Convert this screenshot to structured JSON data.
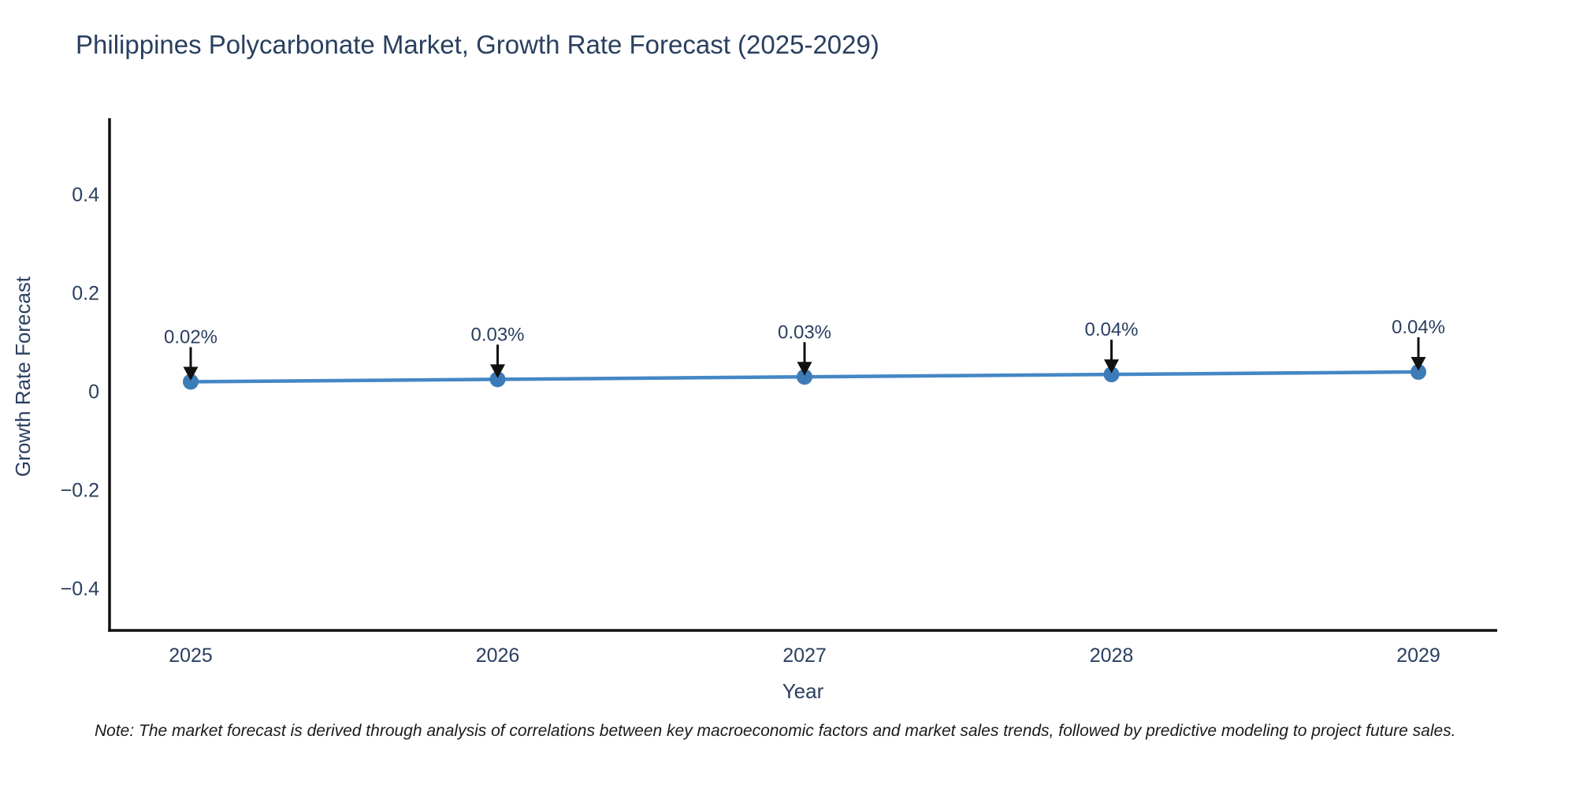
{
  "chart_data": {
    "type": "line",
    "title": "Philippines Polycarbonate Market, Growth Rate Forecast (2025-2029)",
    "xlabel": "Year",
    "ylabel": "Growth Rate Forecast",
    "categories": [
      "2025",
      "2026",
      "2027",
      "2028",
      "2029"
    ],
    "series": [
      {
        "name": "Growth Rate Forecast",
        "values": [
          0.02,
          0.025,
          0.03,
          0.035,
          0.04
        ],
        "point_labels": [
          "0.02%",
          "0.03%",
          "0.03%",
          "0.04%",
          "0.04%"
        ]
      }
    ],
    "yticks": [
      0.4,
      0.2,
      0,
      -0.2,
      -0.4
    ],
    "ytick_labels": [
      "0.4",
      "0.2",
      "0",
      "−0.2",
      "−0.4"
    ],
    "ylim": [
      -0.49,
      0.56
    ],
    "grid": false,
    "legend": "none",
    "colors": {
      "line": "#4487c5",
      "marker": "#3c7bb8",
      "arrow": "#111111",
      "axis": "#111111",
      "text": "#2a3f5f"
    }
  },
  "note": {
    "text": "Note: The market forecast is derived through analysis of correlations between key macroeconomic factors and market sales trends, followed by predictive modeling to project future sales."
  }
}
